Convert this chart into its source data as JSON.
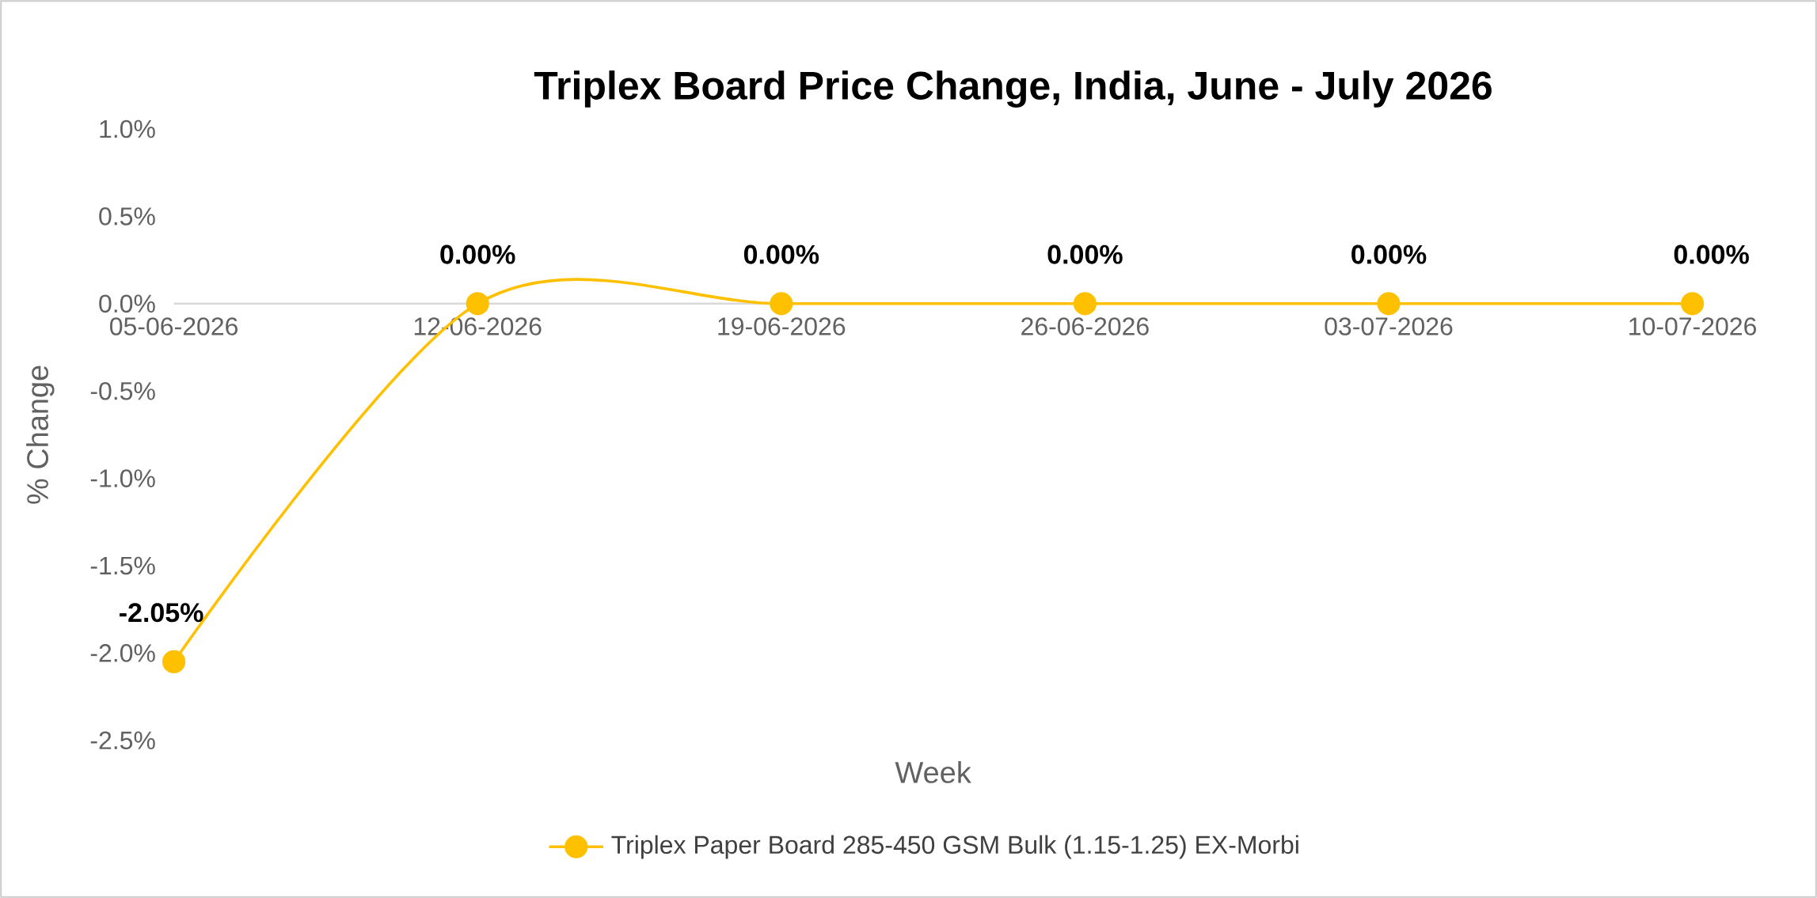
{
  "chart_data": {
    "type": "line",
    "title": "Triplex Board Price Change, India, June - July 2026",
    "xlabel": "Week",
    "ylabel": "% Change",
    "categories": [
      "05-06-2026",
      "12-06-2026",
      "19-06-2026",
      "26-06-2026",
      "03-07-2026",
      "10-07-2026"
    ],
    "series": [
      {
        "name": "Triplex Paper Board 285-450 GSM Bulk (1.15-1.25) EX-Morbi",
        "color": "#ffc000",
        "values": [
          -2.05,
          0,
          0,
          0,
          0,
          0
        ],
        "value_labels": [
          "-2.05%",
          "0.00%",
          "0.00%",
          "0.00%",
          "0.00%",
          "0.00%"
        ]
      }
    ],
    "ylim": [
      -2.5,
      1.0
    ],
    "yticks": [
      {
        "value": -2.5,
        "label": "-2.5%"
      },
      {
        "value": -2.0,
        "label": "-2.0%"
      },
      {
        "value": -1.5,
        "label": "-1.5%"
      },
      {
        "value": -1.0,
        "label": "-1.0%"
      },
      {
        "value": -0.5,
        "label": "-0.5%"
      },
      {
        "value": 0.0,
        "label": "0.0%"
      },
      {
        "value": 0.5,
        "label": "0.5%"
      },
      {
        "value": 1.0,
        "label": "1.0%"
      }
    ],
    "marker": "circle",
    "line_style": "solid",
    "legend": "bottom"
  }
}
